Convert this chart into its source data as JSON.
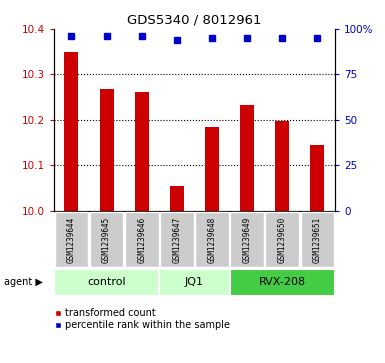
{
  "title": "GDS5340 / 8012961",
  "samples": [
    "GSM1239644",
    "GSM1239645",
    "GSM1239646",
    "GSM1239647",
    "GSM1239648",
    "GSM1239649",
    "GSM1239650",
    "GSM1239651"
  ],
  "red_values": [
    10.35,
    10.268,
    10.262,
    10.055,
    10.185,
    10.232,
    10.198,
    10.145
  ],
  "blue_values": [
    96,
    96,
    96,
    94,
    95,
    95,
    95,
    95
  ],
  "ylim_left": [
    10.0,
    10.4
  ],
  "ylim_right": [
    0,
    100
  ],
  "yticks_left": [
    10.0,
    10.1,
    10.2,
    10.3,
    10.4
  ],
  "yticks_right": [
    0,
    25,
    50,
    75,
    100
  ],
  "ytick_labels_right": [
    "0",
    "25",
    "50",
    "75",
    "100%"
  ],
  "grid_lines": [
    10.1,
    10.2,
    10.3
  ],
  "group_boundaries": [
    {
      "start": 0,
      "end": 2,
      "label": "control",
      "color": "#ccffcc"
    },
    {
      "start": 3,
      "end": 4,
      "label": "JQ1",
      "color": "#ccffcc"
    },
    {
      "start": 5,
      "end": 7,
      "label": "RVX-208",
      "color": "#44cc44"
    }
  ],
  "agent_label": "agent ▶",
  "red_color": "#cc0000",
  "blue_color": "#0000cc",
  "sample_bg_color": "#cccccc",
  "plot_bg_color": "#ffffff",
  "legend_red_label": "transformed count",
  "legend_blue_label": "percentile rank within the sample",
  "bar_width": 0.4,
  "figsize": [
    3.85,
    3.63
  ],
  "dpi": 100
}
